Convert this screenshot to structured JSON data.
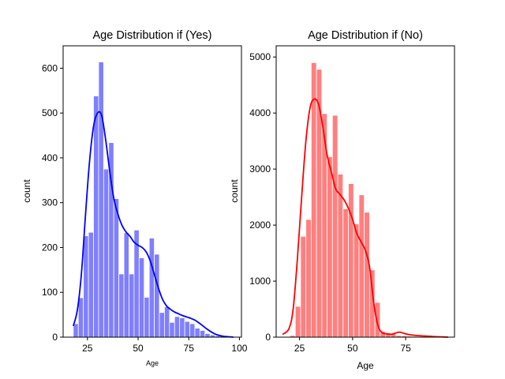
{
  "chart_data": [
    {
      "type": "bar",
      "title": "Age Distribution if (Yes)",
      "xlabel": "Age",
      "ylabel": "count",
      "xlim": [
        13,
        101
      ],
      "ylim": [
        0,
        650
      ],
      "xticks": [
        "25",
        "50",
        "75",
        "100"
      ],
      "xtick_values": [
        25,
        50,
        75,
        100
      ],
      "yticks": [
        "0",
        "100",
        "200",
        "300",
        "400",
        "500",
        "600"
      ],
      "ytick_values": [
        0,
        100,
        200,
        300,
        400,
        500,
        600
      ],
      "bin_start": 18,
      "bin_width": 2.5,
      "values": [
        30,
        88,
        226,
        234,
        538,
        614,
        375,
        434,
        309,
        141,
        233,
        141,
        239,
        177,
        89,
        221,
        185,
        55,
        68,
        33,
        46,
        43,
        35,
        30,
        20,
        15,
        8,
        5,
        3,
        2,
        1,
        1
      ],
      "kde": {
        "x": [
          18,
          20,
          22,
          24,
          26,
          28,
          30,
          32,
          34,
          36,
          38,
          40,
          42,
          44,
          46,
          48,
          50,
          52,
          54,
          56,
          58,
          60,
          62,
          64,
          66,
          68,
          70,
          72,
          74,
          76,
          78,
          80,
          82,
          84,
          86,
          88,
          90,
          92,
          94,
          96,
          97
        ],
        "y": [
          25,
          60,
          140,
          270,
          390,
          470,
          500,
          495,
          440,
          370,
          310,
          275,
          250,
          235,
          225,
          212,
          205,
          200,
          190,
          170,
          140,
          110,
          85,
          70,
          62,
          56,
          52,
          48,
          45,
          42,
          38,
          32,
          25,
          18,
          12,
          7,
          4,
          2,
          1,
          0.5,
          0
        ]
      },
      "color": "#0000ff",
      "bar_color": "#7f7fff"
    },
    {
      "type": "bar",
      "title": "Age Distribution if (No)",
      "xlabel": "Age",
      "ylabel": "count",
      "xlim": [
        14,
        98
      ],
      "ylim": [
        0,
        5200
      ],
      "xticks": [
        "25",
        "50",
        "75"
      ],
      "xtick_values": [
        25,
        50,
        75
      ],
      "yticks": [
        "0",
        "1000",
        "2000",
        "3000",
        "4000",
        "5000"
      ],
      "ytick_values": [
        0,
        1000,
        2000,
        3000,
        4000,
        5000
      ],
      "bin_start": 18,
      "bin_width": 2.5,
      "values": [
        0,
        30,
        550,
        1800,
        2100,
        4900,
        4780,
        3990,
        3220,
        3960,
        2910,
        2290,
        2740,
        2020,
        2540,
        2230,
        1200,
        620,
        100,
        80,
        60,
        30,
        25,
        20,
        15,
        10,
        8,
        5,
        4,
        3,
        2,
        1
      ],
      "kde": {
        "x": [
          17,
          20,
          22,
          24,
          26,
          28,
          30,
          32,
          34,
          36,
          38,
          40,
          42,
          44,
          46,
          48,
          50,
          52,
          54,
          56,
          58,
          60,
          62,
          64,
          66,
          68,
          70,
          72,
          74,
          76,
          80,
          84,
          88,
          92,
          95
        ],
        "y": [
          50,
          150,
          500,
          1400,
          2500,
          3500,
          4100,
          4250,
          4150,
          3750,
          3250,
          2950,
          2650,
          2550,
          2450,
          2300,
          2100,
          1850,
          1700,
          1550,
          1250,
          600,
          200,
          80,
          60,
          50,
          70,
          90,
          70,
          50,
          30,
          20,
          10,
          5,
          0
        ]
      },
      "color": "#ff0000",
      "bar_color": "#ff7f7f"
    }
  ]
}
